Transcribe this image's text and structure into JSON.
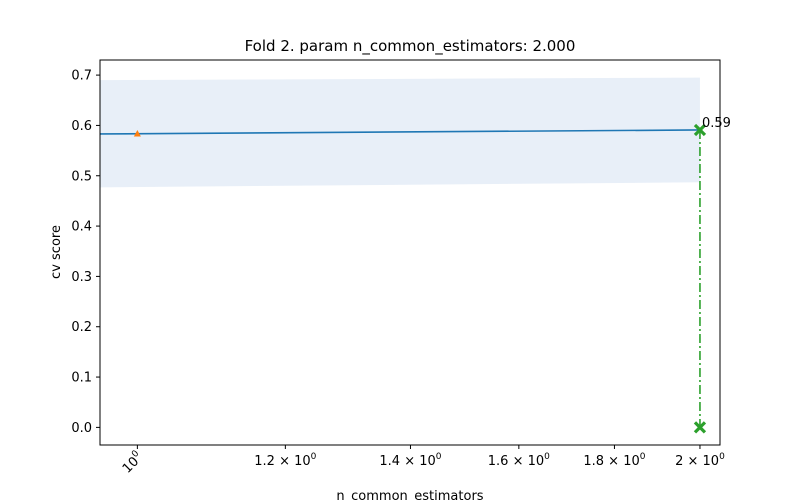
{
  "chart_data": {
    "type": "line",
    "title": "Fold 2. param n_common_estimators: 2.000",
    "xlabel": "n_common_estimators",
    "ylabel": "cv score",
    "xscale": "log",
    "xlim": [
      0.955,
      2.05
    ],
    "ylim": [
      -0.035,
      0.73
    ],
    "grid": false,
    "yticks": [
      {
        "value": 0.0,
        "label": "0.0"
      },
      {
        "value": 0.1,
        "label": "0.1"
      },
      {
        "value": 0.2,
        "label": "0.2"
      },
      {
        "value": 0.3,
        "label": "0.3"
      },
      {
        "value": 0.4,
        "label": "0.4"
      },
      {
        "value": 0.5,
        "label": "0.5"
      },
      {
        "value": 0.6,
        "label": "0.6"
      },
      {
        "value": 0.7,
        "label": "0.7"
      }
    ],
    "xticks": [
      {
        "value": 1.0,
        "base": "10",
        "exp": "0",
        "rotated": true
      },
      {
        "value": 1.2,
        "base": "1.2 × 10",
        "exp": "0",
        "rotated": false
      },
      {
        "value": 1.4,
        "base": "1.4 × 10",
        "exp": "0",
        "rotated": false
      },
      {
        "value": 1.6,
        "base": "1.6 × 10",
        "exp": "0",
        "rotated": false
      },
      {
        "value": 1.8,
        "base": "1.8 × 10",
        "exp": "0",
        "rotated": false
      },
      {
        "value": 2.0,
        "base": "2 × 10",
        "exp": "0",
        "rotated": false
      }
    ],
    "colors": {
      "mean_line": "#1f77b4",
      "band": "#e8eff8",
      "current_point": "#ff7f0e",
      "best_marker": "#2ca02c"
    },
    "mean_line": {
      "x": [
        0.955,
        2.0
      ],
      "y": [
        0.583,
        0.591
      ]
    },
    "band": {
      "x": [
        0.955,
        2.0
      ],
      "lower": [
        0.477,
        0.487
      ],
      "upper": [
        0.69,
        0.695
      ]
    },
    "current_point": {
      "x": 1.0,
      "y": 0.583
    },
    "best": {
      "x": 2.0,
      "y": 0.591,
      "label": "0.59",
      "y_bottom": 0.0
    }
  }
}
